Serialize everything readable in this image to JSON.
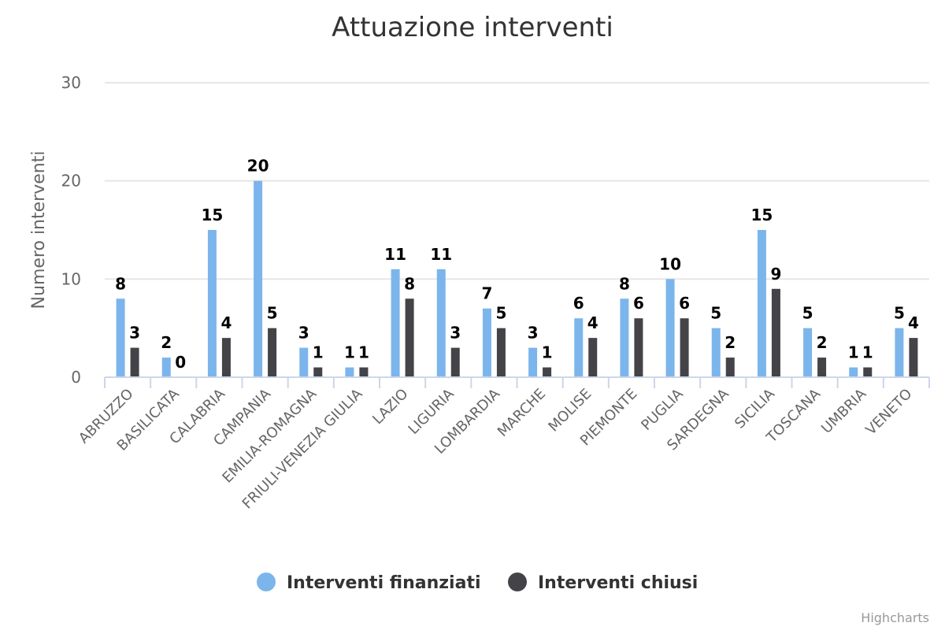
{
  "chart_data": {
    "type": "bar",
    "title": "Attuazione interventi",
    "ylabel": "Numero interventi",
    "xlabel": "",
    "ylim": [
      0,
      30
    ],
    "yticks": [
      0,
      10,
      20,
      30
    ],
    "grid": true,
    "legend_position": "bottom-center",
    "categories": [
      "ABRUZZO",
      "BASILICATA",
      "CALABRIA",
      "CAMPANIA",
      "EMILIA-ROMAGNA",
      "FRIULI-VENEZIA GIULIA",
      "LAZIO",
      "LIGURIA",
      "LOMBARDIA",
      "MARCHE",
      "MOLISE",
      "PIEMONTE",
      "PUGLIA",
      "SARDEGNA",
      "SICILIA",
      "TOSCANA",
      "UMBRIA",
      "VENETO"
    ],
    "series": [
      {
        "name": "Interventi finanziati",
        "color": "#7cb5ec",
        "values": [
          8,
          2,
          15,
          20,
          3,
          1,
          11,
          11,
          7,
          3,
          6,
          8,
          10,
          5,
          15,
          5,
          1,
          5
        ]
      },
      {
        "name": "Interventi chiusi",
        "color": "#434348",
        "values": [
          3,
          0,
          4,
          5,
          1,
          1,
          8,
          3,
          5,
          1,
          4,
          6,
          6,
          2,
          9,
          2,
          1,
          4
        ]
      }
    ]
  },
  "credits": "Highcharts"
}
